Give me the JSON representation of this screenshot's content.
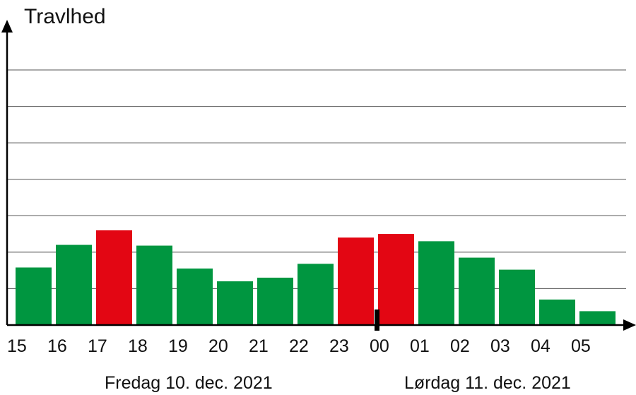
{
  "chart_data": {
    "type": "bar",
    "ylabel": "Travlhed",
    "xlabel": "",
    "categories": [
      "15",
      "16",
      "17",
      "18",
      "19",
      "20",
      "21",
      "22",
      "23",
      "00",
      "01",
      "02",
      "03",
      "04",
      "05"
    ],
    "values": [
      1.58,
      2.2,
      2.6,
      2.18,
      1.55,
      1.2,
      1.3,
      1.68,
      2.4,
      2.5,
      2.3,
      1.85,
      1.52,
      0.7,
      0.38
    ],
    "highlight": [
      false,
      false,
      true,
      false,
      false,
      false,
      false,
      false,
      true,
      true,
      false,
      false,
      false,
      false,
      false
    ],
    "date_labels": [
      "Fredag 10. dec. 2021",
      "Lørdag 11. dec. 2021"
    ],
    "ylim": [
      0,
      7
    ],
    "grid": true,
    "colors": {
      "normal": "#009640",
      "highlight": "#e30613",
      "grid": "#555555",
      "axis": "#000000"
    }
  }
}
